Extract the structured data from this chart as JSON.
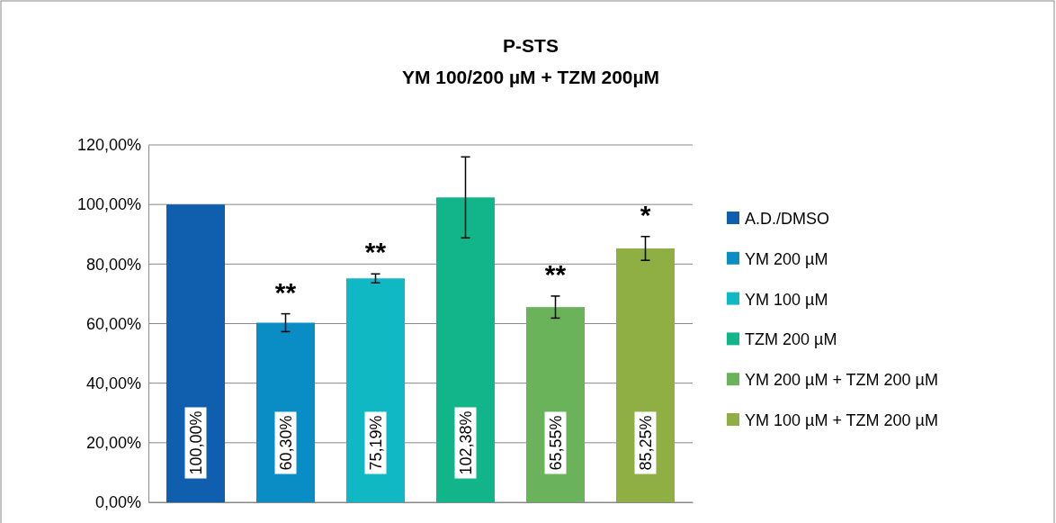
{
  "chart_data": {
    "type": "bar",
    "title": "P-STS\nYM 100/200 µM + TZM 200µM",
    "categories": [
      null,
      null,
      null,
      null,
      null,
      null
    ],
    "series": [
      {
        "name": "A.D./DMSO",
        "color": "#0f5fae",
        "values": [
          100,
          null,
          null,
          null,
          null,
          null
        ],
        "value_labels": [
          "100,00%",
          null,
          null,
          null,
          null,
          null
        ]
      },
      {
        "name": "YM 200 µM",
        "color": "#0a8dc4",
        "values": [
          null,
          60.3,
          null,
          null,
          null,
          null
        ],
        "errors": [
          null,
          3,
          null,
          null,
          null,
          null
        ],
        "value_labels": [
          null,
          "60,30%",
          null,
          null,
          null,
          null
        ]
      },
      {
        "name": "YM 100 µM",
        "color": "#10b8c4",
        "values": [
          null,
          null,
          75.19,
          null,
          null,
          null
        ],
        "errors": [
          null,
          null,
          1.5,
          null,
          null,
          null
        ],
        "value_labels": [
          null,
          null,
          "75,19%",
          null,
          null,
          null
        ]
      },
      {
        "name": "TZM 200 µM",
        "color": "#12b58a",
        "values": [
          null,
          null,
          null,
          102.38,
          null,
          null
        ],
        "errors": [
          null,
          null,
          null,
          13.6,
          null,
          null
        ],
        "value_labels": [
          null,
          null,
          null,
          "102,38%",
          null,
          null
        ]
      },
      {
        "name": "YM 200 µM + TZM 200 µM",
        "color": "#6ab35a",
        "values": [
          null,
          null,
          null,
          null,
          65.55,
          null
        ],
        "errors": [
          null,
          null,
          null,
          null,
          3.7,
          null
        ],
        "value_labels": [
          null,
          null,
          null,
          null,
          "65,55%",
          null
        ]
      },
      {
        "name": "YM 100 µM + TZM 200 µM",
        "color": "#8faf45",
        "values": [
          null,
          null,
          null,
          null,
          null,
          85.25
        ],
        "errors": [
          null,
          null,
          null,
          null,
          null,
          4
        ],
        "value_labels": [
          null,
          null,
          null,
          null,
          null,
          "85,25%"
        ]
      }
    ],
    "annotations": [
      "**",
      "**",
      "**",
      "*"
    ],
    "ylim": [
      0,
      120
    ],
    "yticks": [
      {
        "value": 0,
        "label": "0,00%"
      },
      {
        "value": 20,
        "label": "20,00%"
      },
      {
        "value": 40,
        "label": "40,00%"
      },
      {
        "value": 60,
        "label": "60,00%"
      },
      {
        "value": 80,
        "label": "80,00%"
      },
      {
        "value": 100,
        "label": "100,00%"
      },
      {
        "value": 120,
        "label": "120,00%"
      }
    ],
    "grid": "y",
    "legend": "right",
    "tick_labels": "y"
  }
}
